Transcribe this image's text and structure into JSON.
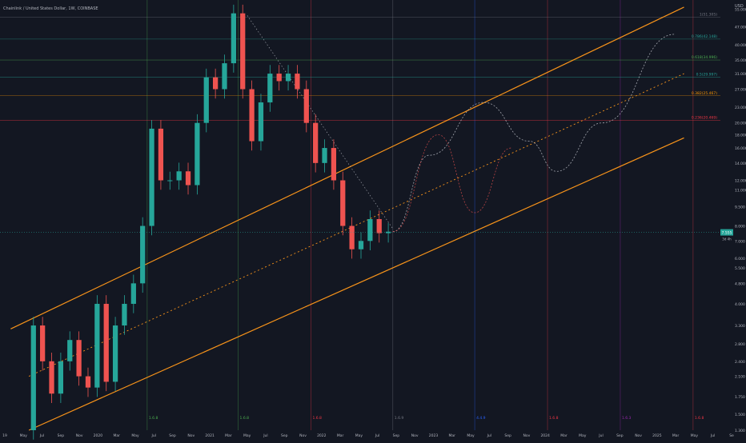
{
  "header": {
    "symbol_line": "Chainlink / United States Dollar, 1W, COINBASE",
    "currency": "USD"
  },
  "colors": {
    "background": "#131722",
    "up": "#26a69a",
    "down": "#ef5350",
    "channel": "#f7931a",
    "axis_text": "#b2b5be",
    "grid": "#1e222d"
  },
  "price_axis": {
    "ticks": [
      "55.000",
      "47.000",
      "40.000",
      "35.000",
      "31.000",
      "27.000",
      "23.000",
      "20.000",
      "18.000",
      "16.000",
      "14.000",
      "12.000",
      "11.000",
      "9.500",
      "8.000",
      "7.000",
      "6.000",
      "5.500",
      "4.800",
      "4.000",
      "3.300",
      "2.800",
      "2.400",
      "2.100",
      "1.750",
      "1.500",
      "1.300"
    ],
    "current_price_label": "7.555",
    "current_time_label": "3d 4h"
  },
  "time_axis": {
    "ticks": [
      "19",
      "May",
      "Jul",
      "Sep",
      "Nov",
      "2020",
      "Mar",
      "May",
      "Jul",
      "Sep",
      "Nov",
      "2021",
      "Mar",
      "May",
      "Jul",
      "Sep",
      "Nov",
      "2022",
      "Mar",
      "May",
      "Jul",
      "Sep",
      "Nov",
      "2023",
      "Mar",
      "May",
      "Jul",
      "Sep",
      "Nov",
      "2024",
      "Mar",
      "May",
      "Jul",
      "Sep",
      "Nov",
      "2025",
      "Mar",
      "May",
      "Jul",
      "Se"
    ]
  },
  "fib_levels": [
    {
      "label": "1(51.305)",
      "price": 51.3,
      "color": "#787b86"
    },
    {
      "label": "0.786(42.148)",
      "price": 42.15,
      "color": "#26a69a"
    },
    {
      "label": "0.618(34.996)",
      "price": 34.99,
      "color": "#4caf50"
    },
    {
      "label": "0.5(29.997)",
      "price": 30.0,
      "color": "#26a69a"
    },
    {
      "label": "0.382(25.467)",
      "price": 25.46,
      "color": "#ff9800"
    },
    {
      "label": "0.236(20.469)",
      "price": 20.47,
      "color": "#f23645"
    }
  ],
  "vertical_markers": [
    {
      "label": "1.6.8",
      "date": "2020-07",
      "color": "#4caf50"
    },
    {
      "label": "1.6.8",
      "date": "2021-05",
      "color": "#4caf50"
    },
    {
      "label": "1.6.8",
      "date": "2022-01",
      "color": "#f23645"
    },
    {
      "label": "1.6.9",
      "date": "2022-10",
      "color": "#787b86"
    },
    {
      "label": "4.4.9",
      "date": "2023-07",
      "color": "#2962ff"
    },
    {
      "label": "1.6.8",
      "date": "2024-03",
      "color": "#f23645"
    },
    {
      "label": "1.6.3",
      "date": "2024-11",
      "color": "#9c27b0"
    },
    {
      "label": "1.6.8",
      "date": "2025-07",
      "color": "#f23645"
    }
  ],
  "chart_data": {
    "type": "candlestick",
    "symbol": "LINKUSD",
    "interval": "1W",
    "exchange": "COINBASE",
    "y_scale": "log",
    "ylim": [
      1.3,
      58
    ],
    "xlim": [
      "2019-03",
      "2025-10"
    ],
    "grid": false,
    "legend": "none",
    "approx_monthly_close": [
      {
        "date": "2019-06",
        "value": 1.3
      },
      {
        "date": "2019-07",
        "value": 3.3
      },
      {
        "date": "2019-08",
        "value": 2.4
      },
      {
        "date": "2019-09",
        "value": 1.8
      },
      {
        "date": "2019-10",
        "value": 2.4
      },
      {
        "date": "2019-11",
        "value": 2.9
      },
      {
        "date": "2019-12",
        "value": 2.1
      },
      {
        "date": "2020-01",
        "value": 1.9
      },
      {
        "date": "2020-02",
        "value": 4.0
      },
      {
        "date": "2020-03",
        "value": 2.0
      },
      {
        "date": "2020-04",
        "value": 3.3
      },
      {
        "date": "2020-05",
        "value": 4.0
      },
      {
        "date": "2020-06",
        "value": 4.8
      },
      {
        "date": "2020-07",
        "value": 8.0
      },
      {
        "date": "2020-08",
        "value": 19.0
      },
      {
        "date": "2020-09",
        "value": 12.0
      },
      {
        "date": "2020-10",
        "value": 12.0
      },
      {
        "date": "2020-11",
        "value": 13.0
      },
      {
        "date": "2020-12",
        "value": 11.5
      },
      {
        "date": "2021-01",
        "value": 20.0
      },
      {
        "date": "2021-02",
        "value": 30.0
      },
      {
        "date": "2021-03",
        "value": 27.0
      },
      {
        "date": "2021-04",
        "value": 34.0
      },
      {
        "date": "2021-05",
        "value": 53.0
      },
      {
        "date": "2021-06",
        "value": 27.0
      },
      {
        "date": "2021-07",
        "value": 17.0
      },
      {
        "date": "2021-08",
        "value": 24.0
      },
      {
        "date": "2021-09",
        "value": 31.0
      },
      {
        "date": "2021-10",
        "value": 29.0
      },
      {
        "date": "2021-11",
        "value": 31.0
      },
      {
        "date": "2021-12",
        "value": 27.0
      },
      {
        "date": "2022-01",
        "value": 20.0
      },
      {
        "date": "2022-02",
        "value": 14.0
      },
      {
        "date": "2022-03",
        "value": 16.0
      },
      {
        "date": "2022-04",
        "value": 12.0
      },
      {
        "date": "2022-05",
        "value": 8.0
      },
      {
        "date": "2022-06",
        "value": 6.5
      },
      {
        "date": "2022-07",
        "value": 7.0
      },
      {
        "date": "2022-08",
        "value": 8.5
      },
      {
        "date": "2022-09",
        "value": 7.5
      },
      {
        "date": "2022-10",
        "value": 7.6
      }
    ],
    "channel": {
      "upper": [
        {
          "date": "2019-04",
          "value": 3.2
        },
        {
          "date": "2025-06",
          "value": 56.0
        }
      ],
      "middle": [
        {
          "date": "2019-06",
          "value": 2.1
        },
        {
          "date": "2025-06",
          "value": 31.0
        }
      ],
      "lower": [
        {
          "date": "2019-06",
          "value": 1.3
        },
        {
          "date": "2025-06",
          "value": 17.5
        }
      ]
    },
    "trendline": [
      {
        "date": "2021-06",
        "value": 52.0
      },
      {
        "date": "2022-10",
        "value": 7.8
      }
    ],
    "projection_path": [
      {
        "date": "2022-10",
        "value": 7.6
      },
      {
        "date": "2023-02",
        "value": 15.0
      },
      {
        "date": "2023-08",
        "value": 24.0
      },
      {
        "date": "2024-01",
        "value": 17.0
      },
      {
        "date": "2024-04",
        "value": 13.0
      },
      {
        "date": "2024-09",
        "value": 20.0
      },
      {
        "date": "2025-05",
        "value": 44.0
      }
    ],
    "alt_projection_path": [
      {
        "date": "2022-10",
        "value": 7.6
      },
      {
        "date": "2023-03",
        "value": 18.0
      },
      {
        "date": "2023-07",
        "value": 9.0
      },
      {
        "date": "2023-11",
        "value": 16.0
      }
    ]
  }
}
